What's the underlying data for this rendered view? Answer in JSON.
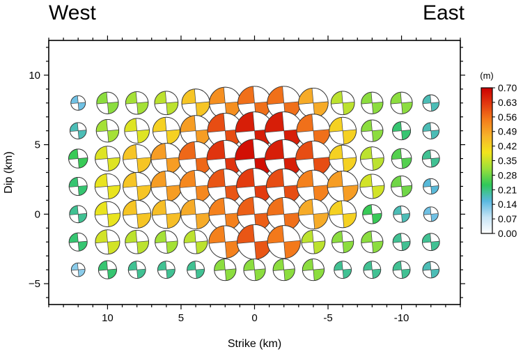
{
  "figure": {
    "left_label": "West",
    "right_label": "East"
  },
  "chart_data": {
    "type": "scatter",
    "marker": "focal-mechanism-beachball",
    "xlabel": "Strike (km)",
    "ylabel": "Dip (km)",
    "xlim": [
      14,
      -14
    ],
    "ylim": [
      -6.5,
      12.5
    ],
    "x_reversed": true,
    "x_ticks": [
      10,
      5,
      0,
      -5,
      -10
    ],
    "x_tick_labels": [
      "10",
      "5",
      "0",
      "-5",
      "-10"
    ],
    "y_ticks": [
      -5,
      0,
      5,
      10
    ],
    "y_tick_labels": [
      "−5",
      "0",
      "5",
      "10"
    ],
    "grid": false,
    "x": [
      12,
      10,
      8,
      6,
      4,
      2,
      0,
      -2,
      -4,
      -6,
      -8,
      -10,
      -12
    ],
    "y": [
      8,
      6,
      4,
      2,
      0,
      -2,
      -4
    ],
    "values": [
      [
        0.14,
        0.3,
        0.32,
        0.34,
        0.44,
        0.52,
        0.56,
        0.56,
        0.48,
        0.34,
        0.3,
        0.3,
        0.18
      ],
      [
        0.18,
        0.32,
        0.37,
        0.42,
        0.5,
        0.6,
        0.66,
        0.66,
        0.56,
        0.42,
        0.3,
        0.22,
        0.18
      ],
      [
        0.24,
        0.37,
        0.44,
        0.5,
        0.57,
        0.63,
        0.68,
        0.66,
        0.6,
        0.42,
        0.34,
        0.26,
        0.2
      ],
      [
        0.22,
        0.38,
        0.44,
        0.5,
        0.53,
        0.59,
        0.62,
        0.6,
        0.54,
        0.5,
        0.36,
        0.28,
        0.16
      ],
      [
        0.2,
        0.38,
        0.44,
        0.45,
        0.48,
        0.54,
        0.58,
        0.56,
        0.48,
        0.42,
        0.24,
        0.18,
        0.14
      ],
      [
        0.22,
        0.36,
        0.34,
        0.32,
        0.34,
        0.54,
        0.59,
        0.55,
        0.34,
        0.3,
        0.3,
        0.2,
        0.2
      ],
      [
        0.12,
        0.22,
        0.2,
        0.2,
        0.2,
        0.3,
        0.3,
        0.3,
        0.3,
        0.2,
        0.2,
        0.2,
        0.18
      ]
    ],
    "colorbar": {
      "label": "(m)",
      "ticks": [
        "0.00",
        "0.07",
        "0.14",
        "0.21",
        "0.28",
        "0.35",
        "0.42",
        "0.49",
        "0.56",
        "0.63",
        "0.70"
      ],
      "range": [
        0,
        0.7
      ],
      "colors": [
        "#ffffff",
        "#c6e4f5",
        "#5ab8e0",
        "#2fc85a",
        "#9be03a",
        "#f3e51c",
        "#f7b42a",
        "#f47e1c",
        "#e23a10",
        "#cc0000"
      ]
    }
  }
}
